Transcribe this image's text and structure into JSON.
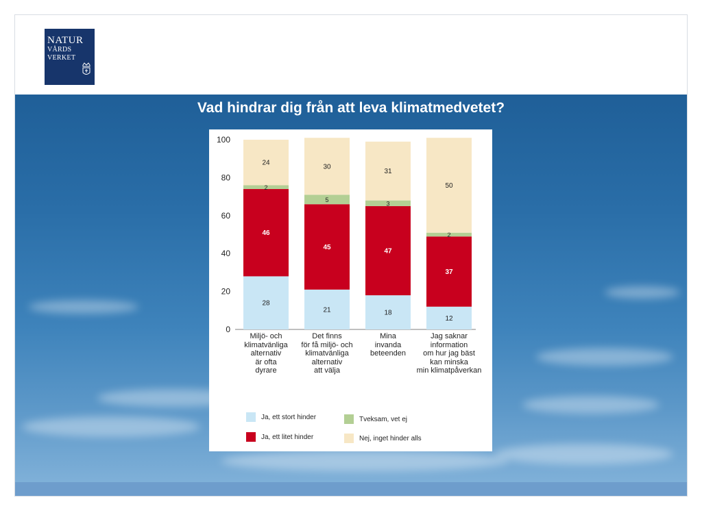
{
  "slide": {
    "title": "Vad hindrar dig från att leva klimatmedvetet?"
  },
  "logo": {
    "line1": "NATUR",
    "line2": "VÅRDS",
    "line3": "VERKET",
    "color": "#17356b"
  },
  "chart_data": {
    "type": "bar",
    "stacked": true,
    "categories": [
      "Miljö- och\nklimatvänliga\nalternativ\när ofta\ndyrare",
      "Det finns\nför få miljö- och\nklimatvänliga\nalternativ\natt välja",
      "Mina\ninvanda\nbeteenden",
      "Jag saknar\ninformation\nom hur jag bäst\nkan minska\nmin klimatpåverkan"
    ],
    "series": [
      {
        "name": "Ja, ett stort hinder",
        "color": "#c9e6f5",
        "values": [
          28,
          21,
          18,
          12
        ]
      },
      {
        "name": "Ja, ett litet hinder",
        "color": "#c8001e",
        "values": [
          46,
          45,
          47,
          37
        ]
      },
      {
        "name": "Tveksam, vet ej",
        "color": "#b3cf94",
        "values": [
          2,
          5,
          3,
          2
        ]
      },
      {
        "name": "Nej, inget hinder alls",
        "color": "#f7e7c5",
        "values": [
          24,
          30,
          31,
          50
        ]
      }
    ],
    "ylim": [
      0,
      100
    ],
    "yticks": [
      0,
      20,
      40,
      60,
      80,
      100
    ],
    "grid": false,
    "legend_position": "bottom"
  }
}
